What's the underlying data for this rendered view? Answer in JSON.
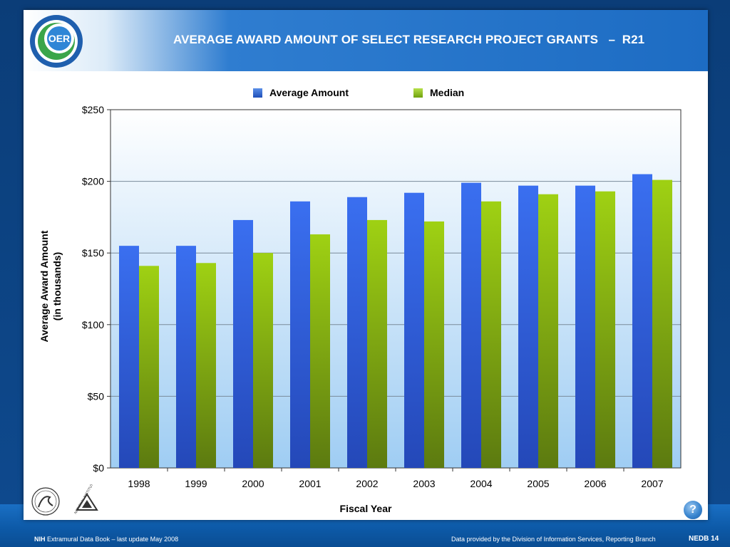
{
  "slide": {
    "title": "AVERAGE AWARD AMOUNT OF SELECT RESEARCH PROJECT GRANTS   –  R21",
    "logo_text": "OER"
  },
  "chart_data": {
    "type": "bar",
    "title": "",
    "xlabel": "Fiscal Year",
    "ylabel_line1": "Average Award Amount",
    "ylabel_line2": "(in thousands)",
    "categories": [
      "1998",
      "1999",
      "2000",
      "2001",
      "2002",
      "2003",
      "2004",
      "2005",
      "2006",
      "2007"
    ],
    "series": [
      {
        "name": "Average Amount",
        "color": "#2e5fd8",
        "values": [
          155,
          155,
          173,
          186,
          189,
          192,
          199,
          197,
          197,
          205
        ]
      },
      {
        "name": "Median",
        "color": "#8cbf10",
        "values": [
          141,
          143,
          150,
          163,
          173,
          172,
          186,
          191,
          193,
          201
        ]
      }
    ],
    "ylim": [
      0,
      250
    ],
    "yticks": [
      0,
      50,
      100,
      150,
      200,
      250
    ],
    "ytick_labels": [
      "$0",
      "$50",
      "$100",
      "$150",
      "$200",
      "$250"
    ],
    "grid": true,
    "legend_position": "top"
  },
  "footer": {
    "nih": "NIH",
    "left_text": " Extramural Data Book – last update May 2008",
    "right_text": "Data provided by the Division of Information Services, Reporting Branch",
    "page": "NEDB 14",
    "help_label": "?",
    "nih_seal_text": "NATIONAL INSTITUTES OF HEALTH"
  }
}
